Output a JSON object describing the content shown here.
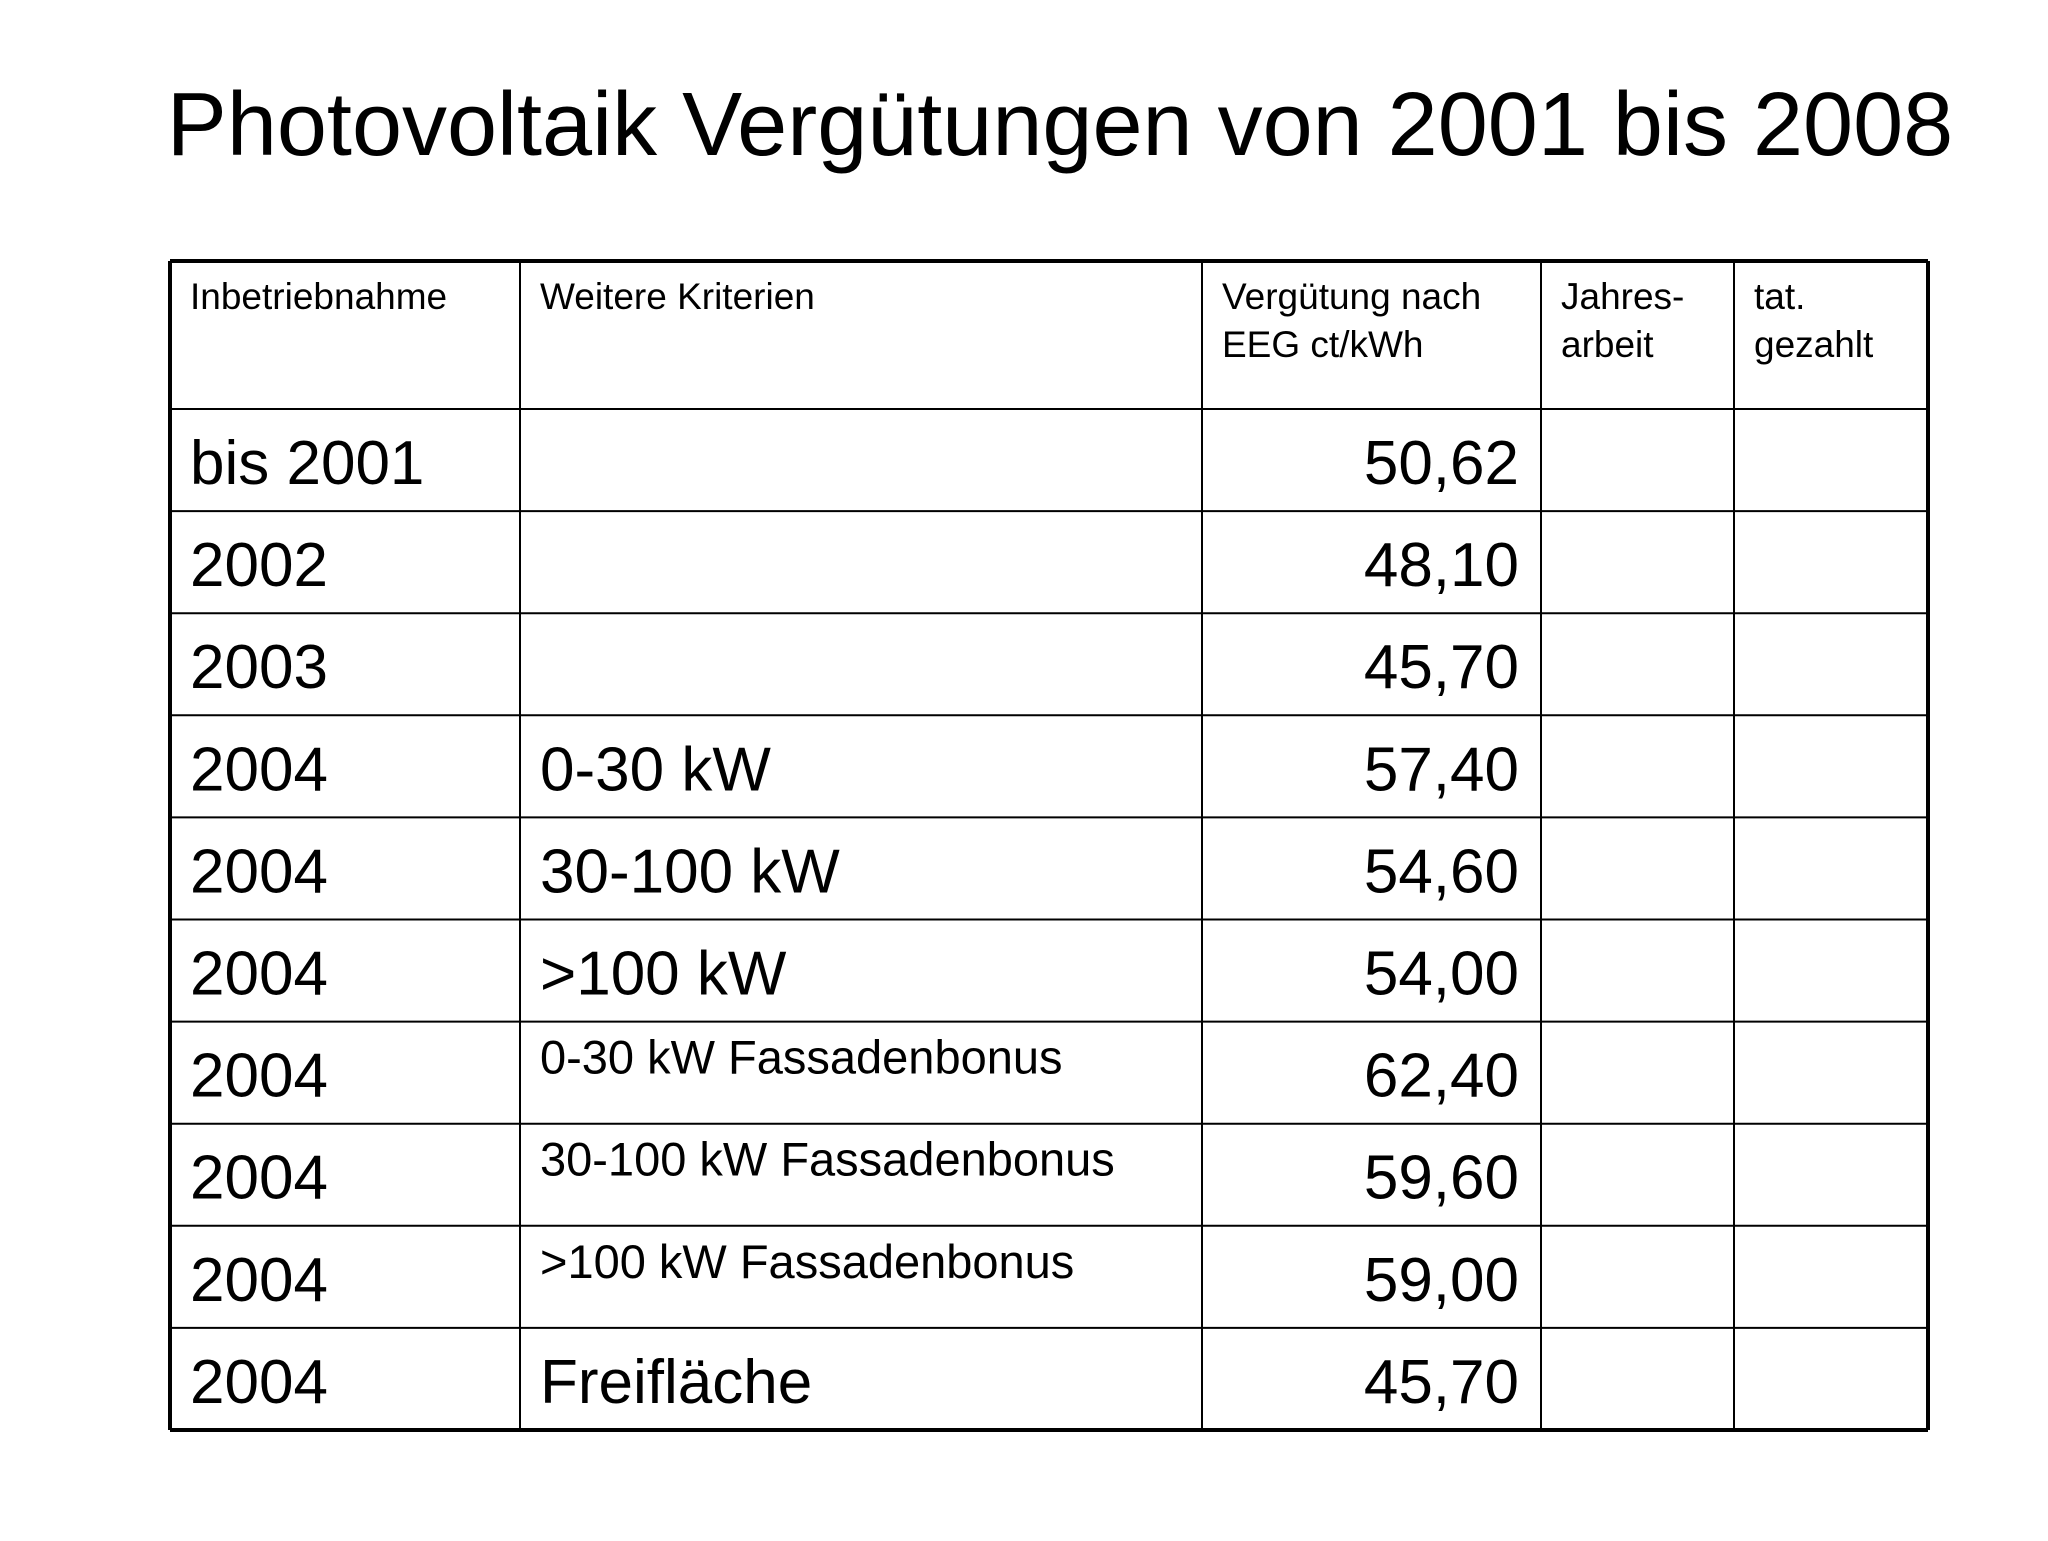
{
  "header": {
    "title": "Photovoltaik Vergütungen von 2001 bis 2008"
  },
  "table": {
    "columns": [
      [
        "Inbetriebnahme"
      ],
      [
        "Weitere Kriterien"
      ],
      [
        "Vergütung nach",
        "EEG ct/kWh"
      ],
      [
        "Jahres-",
        "arbeit"
      ],
      [
        "tat.",
        "gezahlt"
      ]
    ],
    "rows": [
      {
        "year": "bis 2001",
        "rate": "50,62"
      },
      {
        "year": "2002",
        "rate": "48,10"
      },
      {
        "year": "2003",
        "rate": "45,70"
      },
      {
        "year": "2004",
        "criteria": "0-30 kW",
        "rate": "57,40"
      },
      {
        "year": "2004",
        "criteria": "30-100 kW",
        "rate": "54,60"
      },
      {
        "year": "2004",
        "criteria": ">100 kW",
        "rate": "54,00"
      },
      {
        "year": "2004",
        "criteria": "0-30 kW Fassadenbonus",
        "rate": "62,40"
      },
      {
        "year": "2004",
        "criteria": "30-100 kW Fassadenbonus",
        "rate": "59,60"
      },
      {
        "year": "2004",
        "criteria": ">100 kW Fassadenbonus",
        "rate": "59,00"
      },
      {
        "year": "2004",
        "criteria": "Freifläche",
        "rate": "45,70"
      }
    ]
  }
}
